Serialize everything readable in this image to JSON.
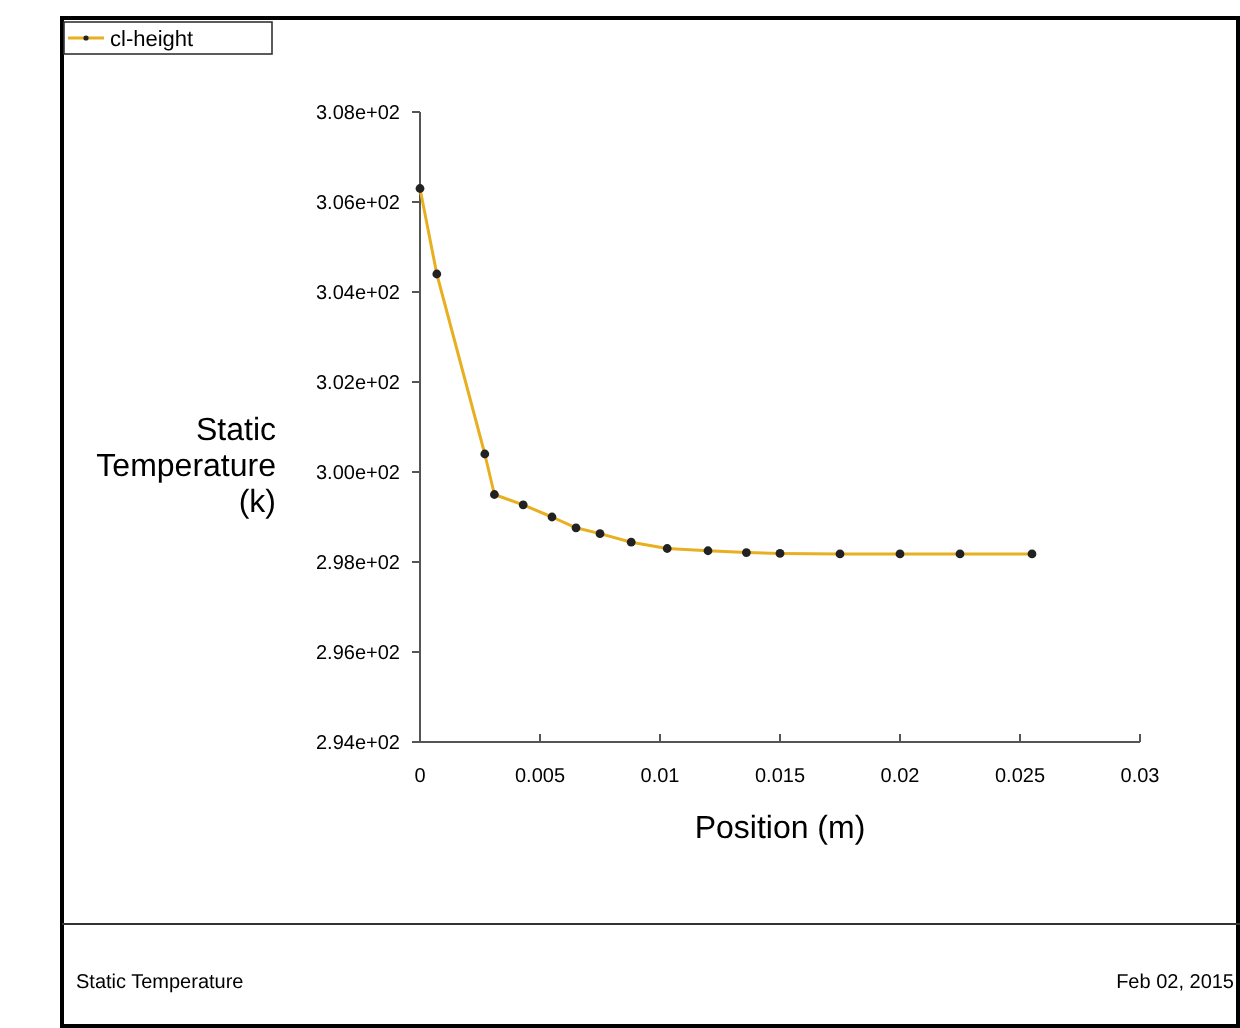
{
  "chart_data": {
    "type": "line",
    "xlabel": "Position (m)",
    "ylabel": "Static Temperature (k)",
    "x": [
      0,
      0.0007,
      0.0027,
      0.0031,
      0.0043,
      0.0055,
      0.0065,
      0.0075,
      0.0088,
      0.0103,
      0.012,
      0.0136,
      0.015,
      0.0175,
      0.02,
      0.0225,
      0.0255
    ],
    "series": [
      {
        "name": "cl-height",
        "color": "#e8b020",
        "values": [
          306.3,
          304.4,
          300.4,
          299.5,
          299.27,
          299.0,
          298.76,
          298.63,
          298.44,
          298.3,
          298.25,
          298.21,
          298.19,
          298.18,
          298.18,
          298.18,
          298.18
        ]
      }
    ],
    "xlim": [
      0,
      0.03
    ],
    "xticks": [
      0,
      0.005,
      0.01,
      0.015,
      0.02,
      0.025,
      0.03
    ],
    "ylim": [
      294,
      308
    ],
    "yticks": [
      {
        "value": 294,
        "label": "2.94e+02"
      },
      {
        "value": 296,
        "label": "2.96e+02"
      },
      {
        "value": 298,
        "label": "2.98e+02"
      },
      {
        "value": 300,
        "label": "3.00e+02"
      },
      {
        "value": 302,
        "label": "3.02e+02"
      },
      {
        "value": 304,
        "label": "3.04e+02"
      },
      {
        "value": 306,
        "label": "3.06e+02"
      },
      {
        "value": 308,
        "label": "3.08e+02"
      }
    ],
    "grid": false,
    "legend": "top left",
    "marker": "circle",
    "line_style": "solid",
    "annotations": [
      "Static Temperature",
      "Feb 02, 2015"
    ]
  }
}
